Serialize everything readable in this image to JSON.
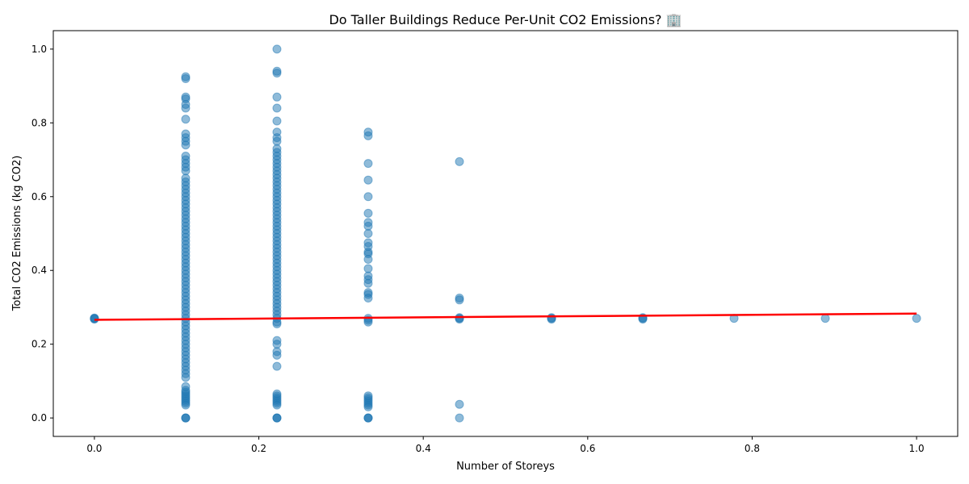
{
  "chart_data": {
    "type": "scatter",
    "title": "Do Taller Buildings Reduce Per-Unit CO2 Emissions? 🏢",
    "xlabel": "Number of Storeys",
    "ylabel": "Total CO2 Emissions (kg CO2)",
    "xlim": [
      -0.05,
      1.05
    ],
    "ylim": [
      -0.05,
      1.05
    ],
    "xticks": [
      0.0,
      0.2,
      0.4,
      0.6,
      0.8,
      1.0
    ],
    "xtick_labels": [
      "0.0",
      "0.2",
      "0.4",
      "0.6",
      "0.8",
      "1.0"
    ],
    "yticks": [
      0.0,
      0.2,
      0.4,
      0.6,
      0.8,
      1.0
    ],
    "ytick_labels": [
      "0.0",
      "0.2",
      "0.4",
      "0.6",
      "0.8",
      "1.0"
    ],
    "grid": false,
    "point_color": "#1f77b4",
    "point_alpha": 0.5,
    "trend_color": "#ff0000",
    "trend_line": {
      "x": [
        0.0,
        1.0
      ],
      "y": [
        0.266,
        0.283
      ]
    },
    "series": [
      {
        "x": 0.0,
        "y": [
          0.268,
          0.27,
          0.269,
          0.271
        ]
      },
      {
        "x": 0.111,
        "y": [
          0.0,
          0.0,
          0.0,
          0.035,
          0.04,
          0.045,
          0.05,
          0.055,
          0.06,
          0.065,
          0.07,
          0.075,
          0.085,
          0.11,
          0.12,
          0.13,
          0.14,
          0.15,
          0.16,
          0.17,
          0.18,
          0.19,
          0.2,
          0.21,
          0.22,
          0.23,
          0.24,
          0.25,
          0.26,
          0.27,
          0.28,
          0.29,
          0.3,
          0.31,
          0.32,
          0.33,
          0.34,
          0.35,
          0.36,
          0.37,
          0.38,
          0.39,
          0.4,
          0.41,
          0.42,
          0.43,
          0.44,
          0.45,
          0.46,
          0.47,
          0.48,
          0.49,
          0.5,
          0.51,
          0.52,
          0.53,
          0.54,
          0.55,
          0.56,
          0.57,
          0.58,
          0.59,
          0.6,
          0.61,
          0.62,
          0.63,
          0.64,
          0.65,
          0.67,
          0.68,
          0.69,
          0.7,
          0.71,
          0.74,
          0.75,
          0.76,
          0.77,
          0.81,
          0.84,
          0.85,
          0.865,
          0.87,
          0.92,
          0.925
        ]
      },
      {
        "x": 0.222,
        "y": [
          0.0,
          0.0,
          0.0,
          0.035,
          0.04,
          0.045,
          0.05,
          0.055,
          0.06,
          0.065,
          0.14,
          0.17,
          0.18,
          0.2,
          0.21,
          0.255,
          0.26,
          0.27,
          0.28,
          0.29,
          0.3,
          0.31,
          0.32,
          0.33,
          0.34,
          0.35,
          0.36,
          0.37,
          0.38,
          0.39,
          0.4,
          0.41,
          0.42,
          0.43,
          0.44,
          0.45,
          0.46,
          0.47,
          0.48,
          0.49,
          0.5,
          0.51,
          0.52,
          0.53,
          0.54,
          0.55,
          0.56,
          0.57,
          0.58,
          0.59,
          0.6,
          0.61,
          0.62,
          0.63,
          0.64,
          0.65,
          0.66,
          0.67,
          0.68,
          0.69,
          0.7,
          0.71,
          0.72,
          0.73,
          0.75,
          0.76,
          0.775,
          0.805,
          0.84,
          0.87,
          0.935,
          0.94,
          1.0
        ]
      },
      {
        "x": 0.333,
        "y": [
          0.0,
          0.0,
          0.0,
          0.03,
          0.035,
          0.04,
          0.045,
          0.05,
          0.055,
          0.06,
          0.26,
          0.265,
          0.27,
          0.325,
          0.335,
          0.34,
          0.365,
          0.375,
          0.385,
          0.405,
          0.43,
          0.445,
          0.45,
          0.465,
          0.475,
          0.5,
          0.52,
          0.53,
          0.555,
          0.6,
          0.645,
          0.69,
          0.765,
          0.775
        ]
      },
      {
        "x": 0.444,
        "y": [
          0.0,
          0.037,
          0.268,
          0.27,
          0.272,
          0.32,
          0.325,
          0.695
        ]
      },
      {
        "x": 0.556,
        "y": [
          0.268,
          0.27,
          0.272
        ]
      },
      {
        "x": 0.667,
        "y": [
          0.268,
          0.27,
          0.272
        ]
      },
      {
        "x": 0.778,
        "y": [
          0.27
        ]
      },
      {
        "x": 0.889,
        "y": [
          0.27
        ]
      },
      {
        "x": 1.0,
        "y": [
          0.27
        ]
      }
    ]
  }
}
